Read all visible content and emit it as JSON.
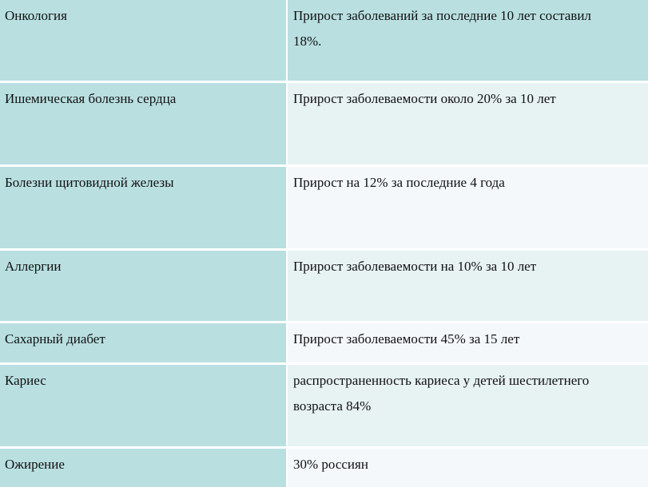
{
  "rows": [
    {
      "disease": "Онкология",
      "stat": [
        "Прирост заболеваний за последние 10 лет составил",
        "18%."
      ]
    },
    {
      "disease": "Ишемическая болезнь сердца",
      "stat": [
        "Прирост заболеваемости около 20% за 10 лет"
      ]
    },
    {
      "disease": "Болезни щитовидной железы",
      "stat": [
        "Прирост на 12% за последние 4 года"
      ]
    },
    {
      "disease": "Аллергии",
      "stat": [
        "Прирост заболеваемости на 10% за 10 лет"
      ]
    },
    {
      "disease": "Сахарный диабет",
      "stat": [
        "Прирост заболеваемости 45% за 15 лет"
      ]
    },
    {
      "disease": "Кариес",
      "stat": [
        "распространенность кариеса у детей шестилетнего",
        "возраста 84%"
      ]
    },
    {
      "disease": "Ожирение",
      "stat": [
        "30% россиян"
      ]
    }
  ],
  "colors": {
    "teal": "#b9dfe1",
    "light_teal": "#e7f2f3",
    "lighter": "#f4f8fb"
  }
}
